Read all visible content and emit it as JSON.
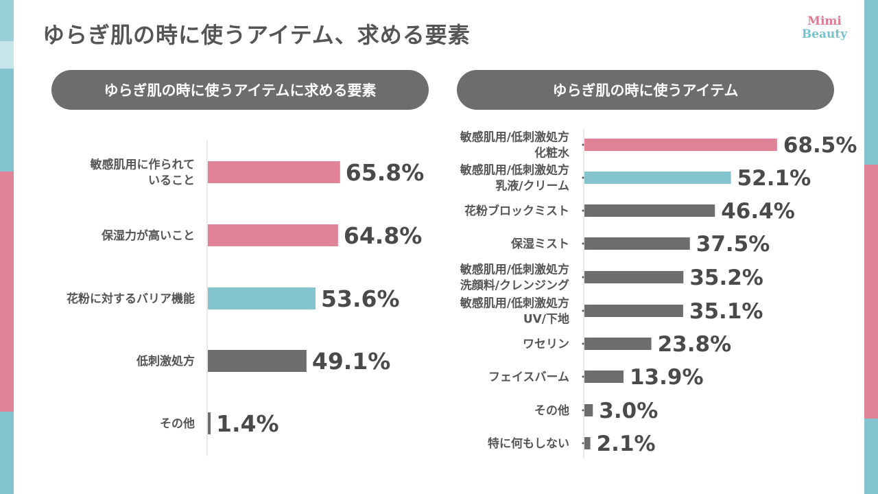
{
  "page": {
    "title": "ゆらぎ肌の時に使うアイテム、求める要素",
    "logo_line1": "Mimi",
    "logo_line2": "Beauty"
  },
  "colors": {
    "pink": "#e08396",
    "teal": "#84c4cf",
    "gray": "#6f6c6d",
    "text": "#555555"
  },
  "chart_data": [
    {
      "type": "bar",
      "orientation": "horizontal",
      "title": "ゆらぎ肌の時に使うアイテムに求める要素",
      "unit": "%",
      "categories": [
        [
          "敏感肌用に作られて",
          "いること"
        ],
        [
          "保湿力が高いこと"
        ],
        [
          "花粉に対するバリア機能"
        ],
        [
          "低刺激処方"
        ],
        [
          "その他"
        ]
      ],
      "values": [
        65.8,
        64.8,
        53.6,
        49.1,
        1.4
      ],
      "value_labels": [
        "65.8%",
        "64.8%",
        "53.6%",
        "49.1%",
        "1.4%"
      ],
      "bar_colors": [
        "pink",
        "pink",
        "teal",
        "gray",
        "gray"
      ],
      "xlim": [
        0,
        100
      ]
    },
    {
      "type": "bar",
      "orientation": "horizontal",
      "title": "ゆらぎ肌の時に使うアイテム",
      "unit": "%",
      "categories": [
        [
          "敏感肌用/低刺激処方",
          "化粧水"
        ],
        [
          "敏感肌用/低刺激処方",
          "乳液/クリーム"
        ],
        [
          "花粉ブロックミスト"
        ],
        [
          "保湿ミスト"
        ],
        [
          "敏感肌用/低刺激処方",
          "洗顔料/クレンジング"
        ],
        [
          "敏感肌用/低刺激処方",
          "UV/下地"
        ],
        [
          "ワセリン"
        ],
        [
          "フェイスバーム"
        ],
        [
          "その他"
        ],
        [
          "特に何もしない"
        ]
      ],
      "values": [
        68.5,
        52.1,
        46.4,
        37.5,
        35.2,
        35.1,
        23.8,
        13.9,
        3.0,
        2.1
      ],
      "value_labels": [
        "68.5%",
        "52.1%",
        "46.4%",
        "37.5%",
        "35.2%",
        "35.1%",
        "23.8%",
        "13.9%",
        "3.0%",
        "2.1%"
      ],
      "bar_colors": [
        "pink",
        "teal",
        "gray",
        "gray",
        "gray",
        "gray",
        "gray",
        "gray",
        "gray",
        "gray"
      ],
      "xlim": [
        0,
        100
      ]
    }
  ]
}
